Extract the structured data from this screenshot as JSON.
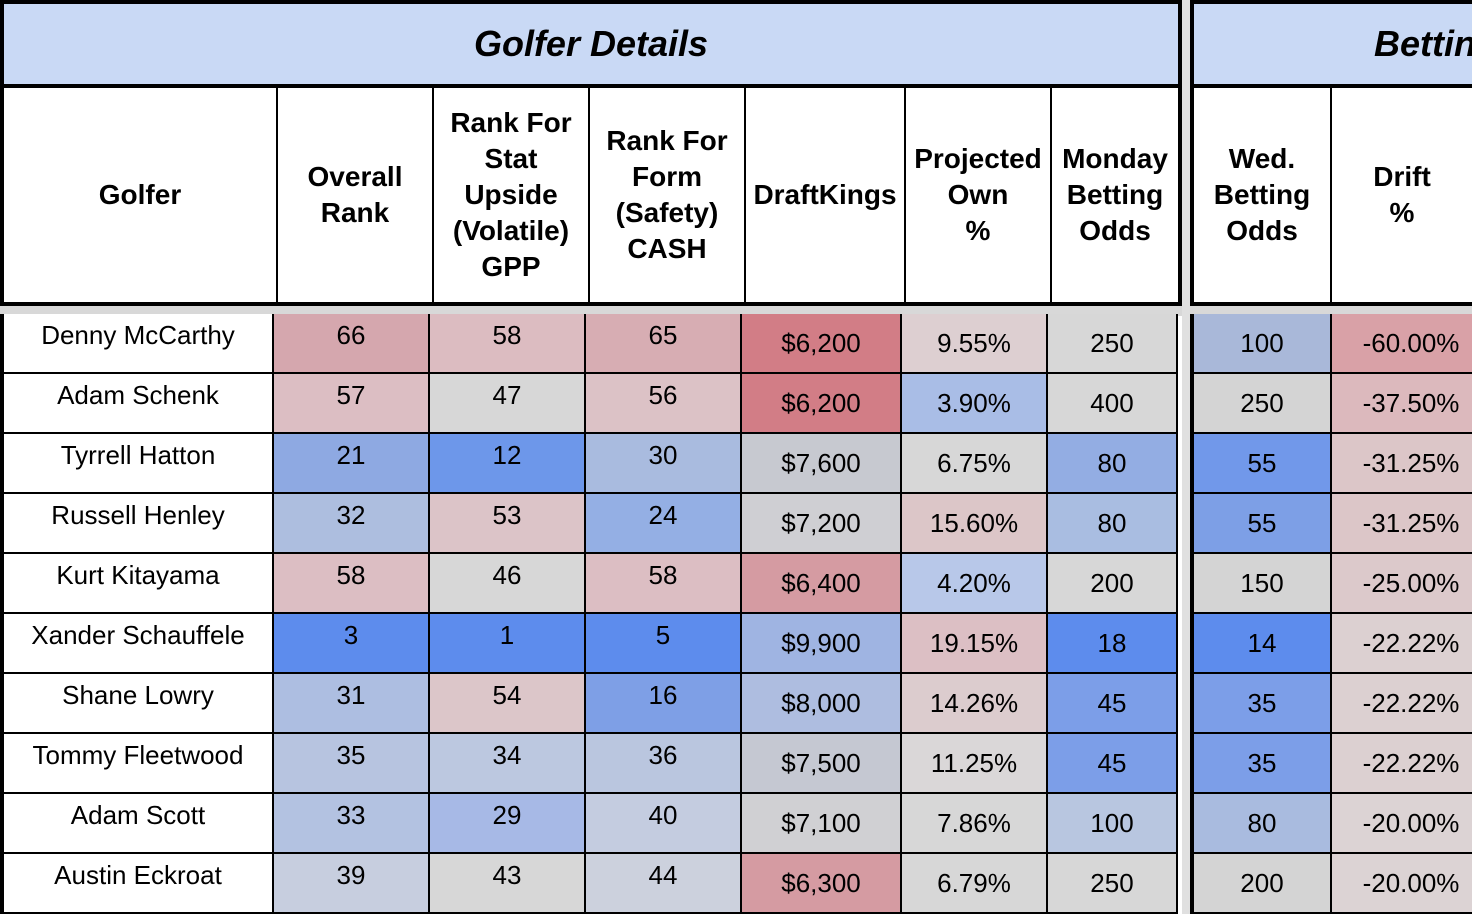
{
  "banners": {
    "left": "Golfer Details",
    "right": "Betting"
  },
  "headers": [
    "Golfer",
    "Overall\nRank",
    "Rank For\nStat\nUpside\n(Volatile)\nGPP",
    "Rank For\nForm\n(Safety)\nCASH",
    "DraftKings",
    "Projected\nOwn\n%",
    "Monday\nBetting\nOdds",
    "Wed.\nBetting\nOdds",
    "Drift\n%"
  ],
  "rows": [
    {
      "golfer": "Denny McCarthy",
      "overall_rank": "66",
      "rank_stat_upside": "58",
      "rank_form": "65",
      "draftkings": "$6,200",
      "projected_own": "9.55%",
      "monday_odds": "250",
      "wed_odds": "100",
      "drift": "-60.00%"
    },
    {
      "golfer": "Adam Schenk",
      "overall_rank": "57",
      "rank_stat_upside": "47",
      "rank_form": "56",
      "draftkings": "$6,200",
      "projected_own": "3.90%",
      "monday_odds": "400",
      "wed_odds": "250",
      "drift": "-37.50%"
    },
    {
      "golfer": "Tyrrell Hatton",
      "overall_rank": "21",
      "rank_stat_upside": "12",
      "rank_form": "30",
      "draftkings": "$7,600",
      "projected_own": "6.75%",
      "monday_odds": "80",
      "wed_odds": "55",
      "drift": "-31.25%"
    },
    {
      "golfer": "Russell Henley",
      "overall_rank": "32",
      "rank_stat_upside": "53",
      "rank_form": "24",
      "draftkings": "$7,200",
      "projected_own": "15.60%",
      "monday_odds": "80",
      "wed_odds": "55",
      "drift": "-31.25%"
    },
    {
      "golfer": "Kurt Kitayama",
      "overall_rank": "58",
      "rank_stat_upside": "46",
      "rank_form": "58",
      "draftkings": "$6,400",
      "projected_own": "4.20%",
      "monday_odds": "200",
      "wed_odds": "150",
      "drift": "-25.00%"
    },
    {
      "golfer": "Xander Schauffele",
      "overall_rank": "3",
      "rank_stat_upside": "1",
      "rank_form": "5",
      "draftkings": "$9,900",
      "projected_own": "19.15%",
      "monday_odds": "18",
      "wed_odds": "14",
      "drift": "-22.22%"
    },
    {
      "golfer": "Shane Lowry",
      "overall_rank": "31",
      "rank_stat_upside": "54",
      "rank_form": "16",
      "draftkings": "$8,000",
      "projected_own": "14.26%",
      "monday_odds": "45",
      "wed_odds": "35",
      "drift": "-22.22%"
    },
    {
      "golfer": "Tommy Fleetwood",
      "overall_rank": "35",
      "rank_stat_upside": "34",
      "rank_form": "36",
      "draftkings": "$7,500",
      "projected_own": "11.25%",
      "monday_odds": "45",
      "wed_odds": "35",
      "drift": "-22.22%"
    },
    {
      "golfer": "Adam Scott",
      "overall_rank": "33",
      "rank_stat_upside": "29",
      "rank_form": "40",
      "draftkings": "$7,100",
      "projected_own": "7.86%",
      "monday_odds": "100",
      "wed_odds": "80",
      "drift": "-20.00%"
    },
    {
      "golfer": "Austin Eckroat",
      "overall_rank": "39",
      "rank_stat_upside": "43",
      "rank_form": "44",
      "draftkings": "$6,300",
      "projected_own": "6.79%",
      "monday_odds": "250",
      "wed_odds": "200",
      "drift": "-20.00%"
    }
  ],
  "cell_colors": [
    [
      "#d5a7ae",
      "#dcbcc1",
      "#d7adb3",
      "#d27d86",
      "#ddcfd1",
      "#d7d7d7",
      "#a9b8d9",
      "#d9a1a7"
    ],
    [
      "#dcbec3",
      "#d7d7d7",
      "#dcc2c6",
      "#d27d86",
      "#a9bde6",
      "#d7d7d7",
      "#d4d4d4",
      "#dcb9bd"
    ],
    [
      "#8ea9e2",
      "#6d97ea",
      "#a9bbdf",
      "#c7c9d0",
      "#d7d7d7",
      "#93ade3",
      "#7198ea",
      "#dcc6c8"
    ],
    [
      "#adbedf",
      "#dcc4c8",
      "#94afe4",
      "#cfcfd3",
      "#dcc6c8",
      "#a9bde1",
      "#7d9fe6",
      "#dcc6c8"
    ],
    [
      "#dcbec3",
      "#d7d7d7",
      "#dcbec3",
      "#d59ba2",
      "#b8c8e9",
      "#d7d7d7",
      "#d4d4d4",
      "#dcc9cb"
    ],
    [
      "#5d8ced",
      "#5d8ced",
      "#5d8ced",
      "#9fb4e2",
      "#dcbfc4",
      "#5d8ced",
      "#5d8ced",
      "#dcd0d1"
    ],
    [
      "#adbee1",
      "#dcc6c9",
      "#7e9fe6",
      "#aebde0",
      "#dcccce",
      "#7c9ee8",
      "#7c9ee8",
      "#dcd0d1"
    ],
    [
      "#b7c4e0",
      "#bcc8e0",
      "#bac6df",
      "#c5c8d2",
      "#dad7d8",
      "#7c9ee8",
      "#7c9ee8",
      "#dcd0d1"
    ],
    [
      "#b3c2e1",
      "#a7b9e6",
      "#c4cce0",
      "#d0d0d3",
      "#d7d7d7",
      "#b8c6e0",
      "#a9bbdf",
      "#dcd3d4"
    ],
    [
      "#c7cedf",
      "#d7d7d7",
      "#ccd1dd",
      "#d59ba2",
      "#d7d7d7",
      "#d7d7d7",
      "#d4d4d4",
      "#dcd3d4"
    ]
  ]
}
